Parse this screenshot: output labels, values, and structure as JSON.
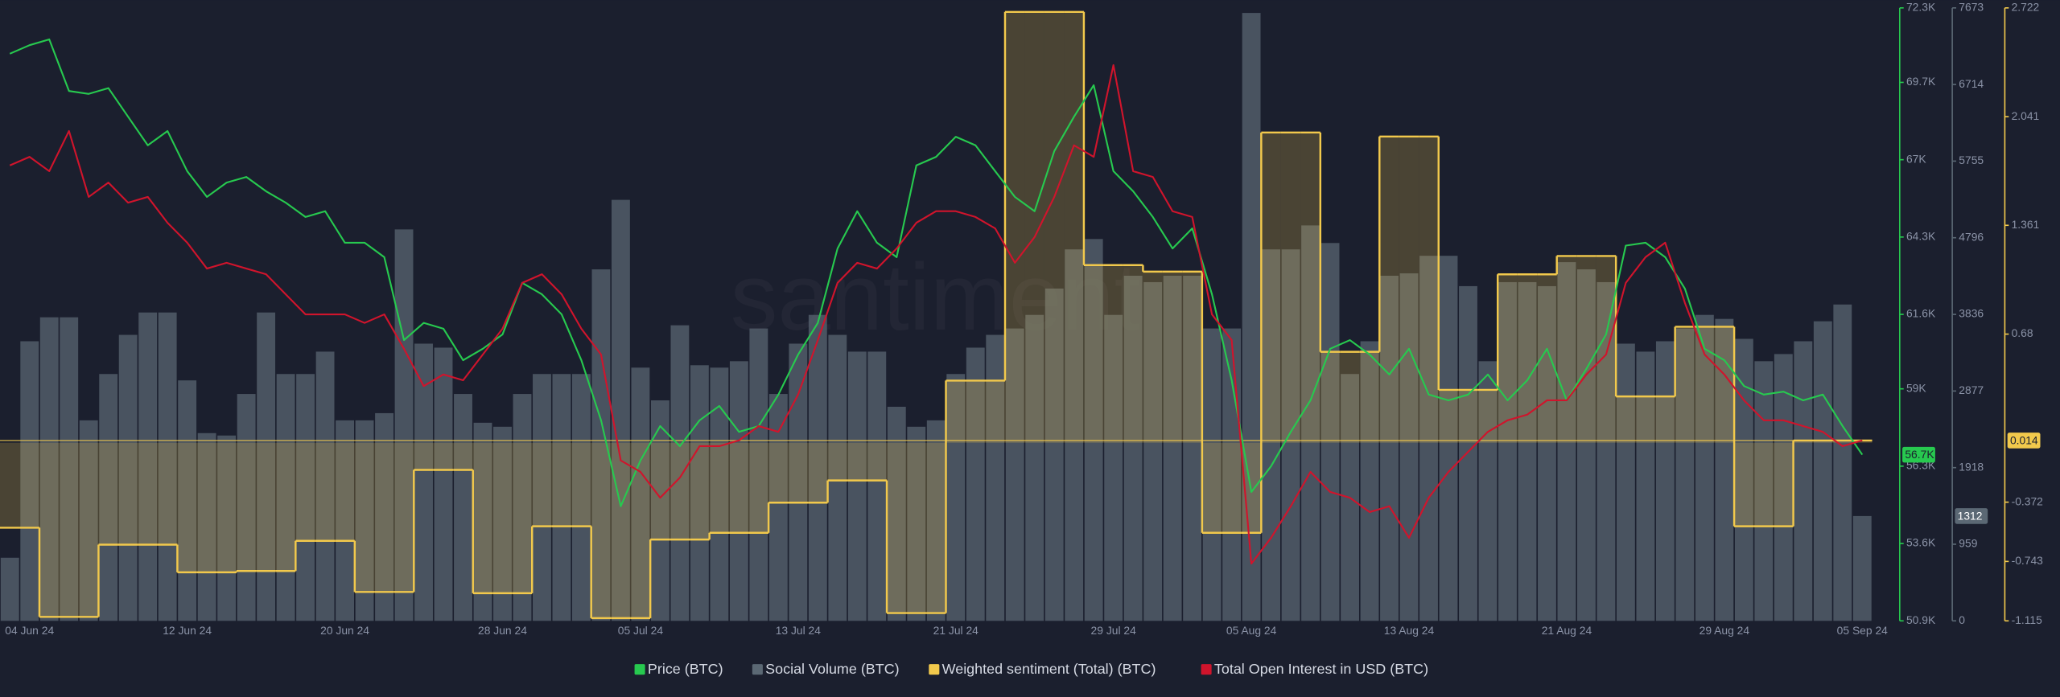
{
  "chart_data": {
    "type": "line",
    "watermark": "santiment",
    "x": [
      null,
      "04 Jun 24",
      null,
      null,
      null,
      null,
      null,
      null,
      null,
      "12 Jun 24",
      null,
      null,
      null,
      null,
      null,
      null,
      null,
      "20 Jun 24",
      null,
      null,
      null,
      null,
      null,
      null,
      null,
      "28 Jun 24",
      null,
      null,
      null,
      null,
      null,
      null,
      "05 Jul 24",
      null,
      null,
      null,
      null,
      null,
      null,
      null,
      "13 Jul 24",
      null,
      null,
      null,
      null,
      null,
      null,
      null,
      "21 Jul 24",
      null,
      null,
      null,
      null,
      null,
      null,
      null,
      "29 Jul 24",
      null,
      null,
      null,
      null,
      null,
      null,
      "05 Aug 24",
      null,
      null,
      null,
      null,
      null,
      null,
      null,
      "13 Aug 24",
      null,
      null,
      null,
      null,
      null,
      null,
      null,
      "21 Aug 24",
      null,
      null,
      null,
      null,
      null,
      null,
      null,
      "29 Aug 24",
      null,
      null,
      null,
      null,
      null,
      null,
      "05 Sep 24"
    ],
    "ylim": [
      50900,
      72300
    ],
    "yticks": [
      {
        "value": 72300,
        "label": "72.3K"
      },
      {
        "value": 69700,
        "label": "69.7K"
      },
      {
        "value": 67000,
        "label": "67K"
      },
      {
        "value": 64300,
        "label": "64.3K"
      },
      {
        "value": 61600,
        "label": "61.6K"
      },
      {
        "value": 59000,
        "label": "59K"
      },
      {
        "value": 56300,
        "label": "56.3K"
      },
      {
        "value": 53600,
        "label": "53.6K"
      },
      {
        "value": 50900,
        "label": "50.9K"
      }
    ],
    "y2lim": [
      0,
      7673
    ],
    "y2ticks": [
      7673,
      6714,
      5755,
      4796,
      3836,
      2877,
      1918,
      959,
      0
    ],
    "y3lim": [
      -1.115,
      2.722
    ],
    "y3ticks": [
      2.722,
      2.041,
      1.361,
      0.68,
      -0.372,
      -0.743,
      -1.115
    ],
    "series": [
      {
        "name": "Social Volume (BTC)",
        "type": "bar",
        "axis": "y2",
        "color": "#5b6874",
        "values": [
          790,
          3500,
          3800,
          3800,
          2510,
          3090,
          3580,
          3860,
          3860,
          3010,
          2350,
          2320,
          2840,
          3860,
          3090,
          3090,
          3370,
          2510,
          2510,
          2600,
          4900,
          3470,
          3420,
          2840,
          2480,
          2430,
          2840,
          3090,
          3090,
          3090,
          4400,
          5270,
          3170,
          2760,
          3700,
          3200,
          3170,
          3250,
          3660,
          2840,
          3470,
          3830,
          3580,
          3370,
          3370,
          2680,
          2430,
          2510,
          3090,
          3420,
          3580,
          3660,
          3830,
          4160,
          4650,
          4780,
          3830,
          4320,
          4240,
          4320,
          4320,
          3660,
          3660,
          7610,
          4650,
          4650,
          4950,
          4730,
          3090,
          3500,
          4320,
          4350,
          4570,
          4570,
          4190,
          3250,
          4240,
          4240,
          4190,
          4490,
          4400,
          4240,
          3470,
          3370,
          3500,
          3660,
          3830,
          3780,
          3530,
          3250,
          3340,
          3500,
          3750,
          3960,
          1312
        ]
      },
      {
        "name": "Weighted sentiment (Total) (BTC)",
        "type": "step",
        "axis": "y3",
        "color": "#f2c94c",
        "values": [
          -0.532,
          -0.532,
          -1.09,
          -1.09,
          -1.09,
          -0.638,
          -0.638,
          -0.638,
          -0.638,
          -0.811,
          -0.811,
          -0.811,
          -0.803,
          -0.803,
          -0.803,
          -0.614,
          -0.614,
          -0.614,
          -0.934,
          -0.934,
          -0.934,
          -0.17,
          -0.17,
          -0.17,
          -0.942,
          -0.942,
          -0.942,
          -0.523,
          -0.523,
          -0.523,
          -1.098,
          -1.098,
          -1.098,
          -0.606,
          -0.606,
          -0.606,
          -0.564,
          -0.564,
          -0.564,
          -0.375,
          -0.375,
          -0.375,
          -0.236,
          -0.236,
          -0.236,
          -1.066,
          -1.066,
          -1.066,
          0.389,
          0.389,
          0.389,
          2.697,
          2.697,
          2.697,
          2.697,
          1.112,
          1.112,
          1.112,
          1.071,
          1.071,
          1.071,
          -0.564,
          -0.564,
          -0.564,
          1.942,
          1.942,
          1.942,
          0.569,
          0.569,
          0.569,
          1.917,
          1.917,
          1.917,
          0.331,
          0.331,
          0.331,
          1.054,
          1.054,
          1.054,
          1.169,
          1.169,
          1.169,
          0.29,
          0.29,
          0.29,
          0.726,
          0.726,
          0.726,
          -0.523,
          -0.523,
          -0.523,
          0.014,
          0.014,
          0.014,
          0.014
        ]
      },
      {
        "name": "Price (BTC)",
        "type": "line",
        "axis": "y",
        "color": "#27c94f",
        "values": [
          70700,
          71000,
          71200,
          69400,
          69300,
          69500,
          68500,
          67500,
          68000,
          66600,
          65700,
          66200,
          66400,
          65900,
          65500,
          65000,
          65200,
          64100,
          64100,
          63600,
          60700,
          61300,
          61100,
          60000,
          60400,
          60900,
          62700,
          62300,
          61600,
          60000,
          57900,
          54900,
          56500,
          57700,
          57000,
          57900,
          58400,
          57500,
          57700,
          58800,
          60200,
          61300,
          63900,
          65200,
          64100,
          63600,
          66800,
          67100,
          67800,
          67500,
          66600,
          65700,
          65200,
          67300,
          68500,
          69600,
          66600,
          65900,
          65000,
          63900,
          64600,
          62300,
          59300,
          55400,
          56300,
          57500,
          58600,
          60400,
          60700,
          60200,
          59500,
          60400,
          58800,
          58600,
          58800,
          59500,
          58600,
          59300,
          60400,
          58600,
          59700,
          60900,
          64000,
          64100,
          63600,
          62500,
          60400,
          60000,
          59100,
          58800,
          58900,
          58600,
          58800,
          57700,
          56700
        ],
        "value_labels": [
          null,
          null,
          null,
          null,
          null,
          null,
          null,
          null,
          null,
          null,
          null,
          null,
          null,
          null,
          null,
          null,
          null,
          null,
          null,
          null,
          null,
          null,
          null,
          null,
          null,
          null,
          null,
          null,
          null,
          null,
          null,
          null,
          null,
          null,
          null,
          null,
          null,
          null,
          null,
          null,
          null,
          null,
          null,
          null,
          null,
          null,
          null,
          null,
          null,
          null,
          null,
          null,
          null,
          null,
          null,
          null,
          null,
          null,
          null,
          null,
          null,
          null,
          null,
          null,
          null,
          null,
          null,
          null,
          null,
          null,
          null,
          null,
          null,
          null,
          null,
          null,
          null,
          null,
          null,
          null,
          null,
          null,
          null,
          null,
          null,
          null,
          null,
          null,
          null,
          null,
          null,
          null,
          null,
          null,
          "56.7K"
        ]
      },
      {
        "name": "Total Open Interest in USD (BTC)",
        "type": "line",
        "axis": "y",
        "color": "#d0142c",
        "values": [
          66800,
          67100,
          66600,
          68000,
          65700,
          66200,
          65500,
          65700,
          64800,
          64100,
          63200,
          63400,
          63200,
          63000,
          62300,
          61600,
          61600,
          61600,
          61300,
          61600,
          60400,
          59100,
          59500,
          59300,
          60200,
          61100,
          62700,
          63000,
          62300,
          61100,
          60200,
          56500,
          56100,
          55200,
          55900,
          57000,
          57000,
          57200,
          57700,
          57500,
          58800,
          60700,
          62700,
          63400,
          63200,
          63900,
          64800,
          65200,
          65200,
          65000,
          64600,
          63400,
          64300,
          65700,
          67500,
          67100,
          70300,
          66600,
          66400,
          65200,
          65000,
          61600,
          60700,
          52900,
          53800,
          54900,
          56100,
          55400,
          55200,
          54700,
          54900,
          53800,
          55200,
          56100,
          56800,
          57500,
          57900,
          58100,
          58600,
          58600,
          59500,
          60200,
          62700,
          63600,
          64100,
          62000,
          60200,
          59500,
          58600,
          57900,
          57900,
          57700,
          57500,
          57000,
          57200
        ]
      }
    ]
  }
}
